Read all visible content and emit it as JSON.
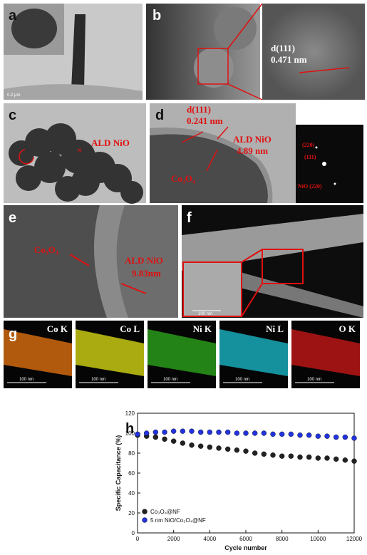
{
  "panels": {
    "a": {
      "label": "a",
      "scale": "0.2 μm"
    },
    "b": {
      "label": "b",
      "plane": "d(111)",
      "spacing": "0.471 nm"
    },
    "c": {
      "label": "c",
      "layer": "ALD NiO"
    },
    "d": {
      "label": "d",
      "plane": "d(111)",
      "spacing": "0.241 nm",
      "layer": "ALD NiO",
      "thickness": "4.89 nm",
      "core": "Co₃O₄",
      "saed": [
        "(220)",
        "(111)",
        "NiO (220)"
      ]
    },
    "e": {
      "label": "e",
      "core": "Co₃O₄",
      "layer": "ALD NiO",
      "thickness": "9.83nm"
    },
    "f": {
      "label": "f",
      "scale": "100 nm"
    },
    "g": {
      "label": "g",
      "maps": [
        {
          "element": "Co K",
          "scale": "100 nm"
        },
        {
          "element": "Co L",
          "scale": "100 nm"
        },
        {
          "element": "Ni K",
          "scale": "100 nm"
        },
        {
          "element": "Ni L",
          "scale": "100 nm"
        },
        {
          "element": "O K",
          "scale": "100 nm"
        }
      ]
    }
  },
  "chart_data": {
    "type": "scatter",
    "title": "h",
    "x_label": "Cycle number",
    "y_label": "Specific Capacitance (%)",
    "x": [
      0,
      500,
      1000,
      1500,
      2000,
      2500,
      3000,
      3500,
      4000,
      4500,
      5000,
      5500,
      6000,
      6500,
      7000,
      7500,
      8000,
      8500,
      9000,
      9500,
      10000,
      10500,
      11000,
      11500,
      12000
    ],
    "series": [
      {
        "name": "Co₃O₄@NF",
        "color": "#222222",
        "values": [
          98,
          97,
          96,
          94,
          92,
          90,
          88,
          87,
          86,
          85,
          84,
          83,
          82,
          80,
          79,
          78,
          77,
          77,
          76,
          76,
          75,
          75,
          74,
          73,
          72
        ]
      },
      {
        "name": "5 nm NiO/Co₃O₄@NF",
        "color": "#2233dd",
        "values": [
          99,
          100,
          101,
          101,
          102,
          102,
          102,
          101,
          101,
          101,
          101,
          100,
          100,
          100,
          100,
          99,
          99,
          99,
          98,
          98,
          97,
          97,
          96,
          96,
          95
        ]
      }
    ],
    "xlim": [
      0,
      12000
    ],
    "xticks": [
      0,
      2000,
      4000,
      6000,
      8000,
      10000,
      12000
    ],
    "ylim": [
      0,
      120
    ],
    "yticks": [
      0,
      20,
      40,
      60,
      80,
      100,
      120
    ],
    "legend": "lower left"
  }
}
